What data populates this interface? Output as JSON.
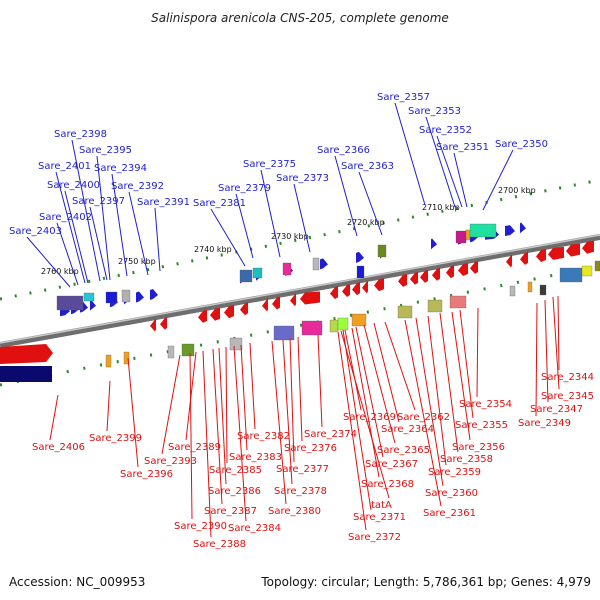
{
  "title": "Salinispora arenicola CNS-205, complete genome",
  "accession": "Accession: NC_009953",
  "summary": "Topology: circular; Length: 5,786,361 bp; Genes: 4,979",
  "colors": {
    "plus": "#1f1fd0",
    "minus": "#e01010",
    "backbone": "#8a8a8a",
    "ticks": "#2a8a2a"
  },
  "ticks": [
    "2760 kbp",
    "2750 kbp",
    "2740 kbp",
    "2730 kbp",
    "2720 kbp",
    "2710 kbp",
    "2700 kbp"
  ],
  "plus_genes": [
    "Sare_2357",
    "Sare_2353",
    "Sare_2352",
    "Sare_2351",
    "Sare_2350",
    "Sare_2366",
    "Sare_2363",
    "Sare_2375",
    "Sare_2373",
    "Sare_2379",
    "Sare_2381",
    "Sare_2398",
    "Sare_2395",
    "Sare_2401",
    "Sare_2394",
    "Sare_2400",
    "Sare_2392",
    "Sare_2397",
    "Sare_2391",
    "Sare_2402",
    "Sare_2403"
  ],
  "minus_genes": [
    "Sare_2344",
    "Sare_2345",
    "Sare_2347",
    "Sare_2349",
    "Sare_2354",
    "Sare_2355",
    "Sare_2356",
    "Sare_2358",
    "Sare_2359",
    "Sare_2360",
    "Sare_2361",
    "Sare_2362",
    "Sare_2364",
    "Sare_2365",
    "Sare_2367",
    "Sare_2368",
    "Sare_2369",
    "Sare_2371",
    "tatA",
    "Sare_2372",
    "Sare_2374",
    "Sare_2376",
    "Sare_2377",
    "Sare_2378",
    "Sare_2380",
    "Sare_2382",
    "Sare_2383",
    "Sare_2384",
    "Sare_2385",
    "Sare_2386",
    "Sare_2387",
    "Sare_2388",
    "Sare_2389",
    "Sare_2390",
    "Sare_2393",
    "Sare_2396",
    "Sare_2399",
    "Sare_2406"
  ]
}
